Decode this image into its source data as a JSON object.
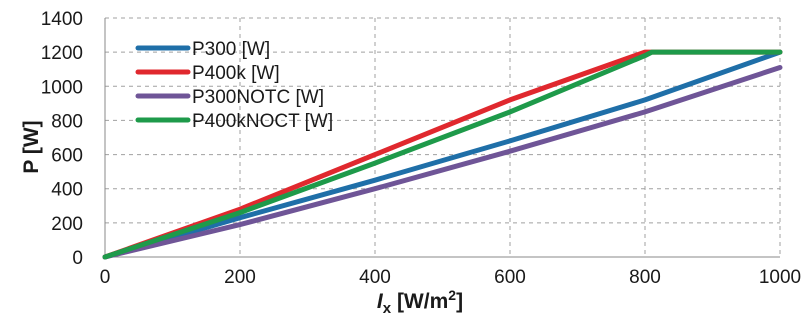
{
  "chart_data": {
    "type": "line",
    "xlabel_main": "I",
    "xlabel_sub": "x",
    "xlabel_unit_prefix": " [W/m",
    "xlabel_unit_sup": "2",
    "xlabel_unit_suffix": "]",
    "ylabel": "P [W]",
    "xlim": [
      0,
      1000
    ],
    "ylim": [
      0,
      1400
    ],
    "x_ticks": [
      0,
      200,
      400,
      600,
      800,
      1000
    ],
    "y_ticks": [
      0,
      200,
      400,
      600,
      800,
      1000,
      1200,
      1400
    ],
    "grid": true,
    "legend_position": "top-left",
    "series": [
      {
        "name": "P300 [W]",
        "color": "#1f6fa8",
        "points": [
          [
            0,
            0
          ],
          [
            200,
            230
          ],
          [
            400,
            450
          ],
          [
            600,
            680
          ],
          [
            800,
            920
          ],
          [
            1000,
            1200
          ]
        ]
      },
      {
        "name": "P400k [W]",
        "color": "#e0282e",
        "points": [
          [
            0,
            0
          ],
          [
            200,
            280
          ],
          [
            400,
            600
          ],
          [
            600,
            920
          ],
          [
            800,
            1200
          ],
          [
            1000,
            1200
          ]
        ]
      },
      {
        "name": "P300NOTC [W]",
        "color": "#6f5597",
        "points": [
          [
            0,
            0
          ],
          [
            200,
            190
          ],
          [
            400,
            400
          ],
          [
            600,
            620
          ],
          [
            800,
            850
          ],
          [
            1000,
            1110
          ]
        ]
      },
      {
        "name": "P400kNOCT [W]",
        "color": "#1e9a4a",
        "points": [
          [
            0,
            0
          ],
          [
            200,
            260
          ],
          [
            400,
            550
          ],
          [
            600,
            850
          ],
          [
            800,
            1180
          ],
          [
            810,
            1200
          ],
          [
            1000,
            1200
          ]
        ]
      }
    ]
  }
}
